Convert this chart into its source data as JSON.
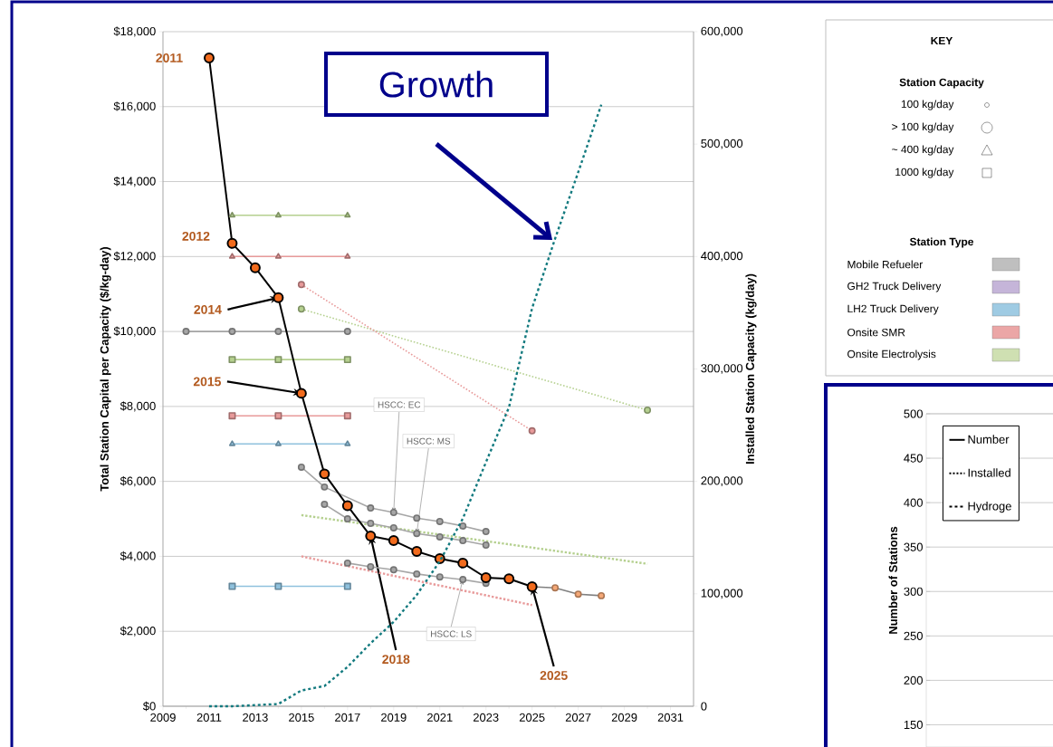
{
  "chart_data": [
    {
      "type": "line",
      "ylabel": "Total Station Capital per Capacity ($/kg-day)",
      "y2label": "Installed Station Capacity  (kg/day)",
      "xlim": [
        2009,
        2032
      ],
      "xticks": [
        2009,
        2011,
        2013,
        2015,
        2017,
        2019,
        2021,
        2023,
        2025,
        2027,
        2029,
        2031
      ],
      "ylim": [
        0,
        18000
      ],
      "yticks": [
        {
          "value": 0,
          "label": "$0"
        },
        {
          "value": 2000,
          "label": "$2,000"
        },
        {
          "value": 4000,
          "label": "$4,000"
        },
        {
          "value": 6000,
          "label": "$6,000"
        },
        {
          "value": 8000,
          "label": "$8,000"
        },
        {
          "value": 10000,
          "label": "$10,000"
        },
        {
          "value": 12000,
          "label": "$12,000"
        },
        {
          "value": 14000,
          "label": "$14,000"
        },
        {
          "value": 16000,
          "label": "$16,000"
        },
        {
          "value": 18000,
          "label": "$18,000"
        }
      ],
      "y2lim": [
        0,
        600000
      ],
      "y2ticks": [
        {
          "value": 0,
          "label": "0"
        },
        {
          "value": 100000,
          "label": "100,000"
        },
        {
          "value": 200000,
          "label": "200,000"
        },
        {
          "value": 300000,
          "label": "300,000"
        },
        {
          "value": 400000,
          "label": "400,000"
        },
        {
          "value": 500000,
          "label": "500,000"
        },
        {
          "value": 600000,
          "label": "600,000"
        }
      ],
      "grid": "y",
      "legend": false,
      "series": [
        {
          "color": "#a6a6a6",
          "x": [
            2010,
            2012,
            2014,
            2017
          ],
          "values": [
            10000,
            10000,
            10000,
            10000
          ],
          "marker": "circle",
          "line_style": "solid"
        },
        {
          "color": "#b5d08f",
          "x": [
            2012,
            2014,
            2017
          ],
          "values": [
            13100,
            13100,
            13100
          ],
          "marker": "triangle",
          "line_style": "solid"
        },
        {
          "color": "#e89a9a",
          "x": [
            2012,
            2014,
            2017
          ],
          "values": [
            12000,
            12000,
            12000
          ],
          "marker": "triangle",
          "line_style": "solid"
        },
        {
          "color": "#b5d08f",
          "x": [
            2012,
            2014,
            2017
          ],
          "values": [
            9250,
            9250,
            9250
          ],
          "marker": "square",
          "line_style": "solid"
        },
        {
          "color": "#e89a9a",
          "x": [
            2012,
            2014,
            2017
          ],
          "values": [
            7750,
            7750,
            7750
          ],
          "marker": "square",
          "line_style": "solid"
        },
        {
          "color": "#8fc1dd",
          "x": [
            2012,
            2014,
            2017
          ],
          "values": [
            7000,
            7000,
            7000
          ],
          "marker": "triangle",
          "line_style": "solid"
        },
        {
          "color": "#8fc1dd",
          "x": [
            2012,
            2014,
            2017
          ],
          "values": [
            3200,
            3200,
            3200
          ],
          "marker": "square",
          "line_style": "solid"
        },
        {
          "color": "#b5d08f",
          "x": [
            2015,
            2030
          ],
          "values": [
            10600,
            7900
          ],
          "marker": "circle",
          "line_style": "dotted"
        },
        {
          "color": "#e89a9a",
          "x": [
            2015,
            2025
          ],
          "values": [
            11250,
            7350
          ],
          "marker": "circle",
          "line_style": "dotted"
        },
        {
          "color": "#b5d08f",
          "x": [
            2015,
            2030
          ],
          "values": [
            5100,
            3800
          ],
          "marker": "none",
          "line_style": "dotted"
        },
        {
          "color": "#e89a9a",
          "x": [
            2015,
            2025
          ],
          "values": [
            4000,
            2700
          ],
          "marker": "none",
          "line_style": "dotted"
        },
        {
          "color": "#a6a6a6",
          "x": [
            2015,
            2016,
            2017,
            2018,
            2019,
            2020,
            2021,
            2022,
            2023
          ],
          "values": [
            6380,
            5850,
            null,
            5290,
            5170,
            5020,
            4930,
            4810,
            4660
          ],
          "marker": "circle",
          "line_style": "solid"
        },
        {
          "color": "#a6a6a6",
          "x": [
            2016,
            2017,
            2018,
            2019,
            2020,
            2021,
            2022,
            2023
          ],
          "values": [
            5390,
            5000,
            4880,
            4760,
            4610,
            4520,
            4420,
            4300
          ],
          "marker": "circle",
          "line_style": "solid"
        },
        {
          "color": "#a6a6a6",
          "x": [
            2017,
            2018,
            2019,
            2020,
            2021,
            2022,
            2023
          ],
          "values": [
            3820,
            3720,
            3640,
            3530,
            3450,
            3380,
            3280
          ],
          "marker": "circle",
          "line_style": "solid"
        },
        {
          "color": "#137a7f",
          "axis": "y2",
          "x": [
            2011,
            2012,
            2013,
            2014,
            2015,
            2016,
            2017,
            2018,
            2019,
            2020,
            2021,
            2022,
            2023,
            2024,
            2025,
            2026,
            2027,
            2028
          ],
          "values": [
            0,
            0,
            1000,
            2000,
            14000,
            18000,
            35000,
            56000,
            75000,
            99000,
            129000,
            167000,
            217000,
            266000,
            354000,
            416000,
            475000,
            535000
          ],
          "marker": "none",
          "line_style": "dashed"
        },
        {
          "color": "#f5a877",
          "x": [
            2025,
            2026,
            2027,
            2028
          ],
          "values": [
            3190,
            3160,
            2990,
            2950
          ],
          "marker": "circle",
          "line_style": "solid"
        },
        {
          "color": "#f26b1d",
          "x": [
            2011,
            2012,
            2013,
            2014,
            2015,
            2016,
            2017,
            2018,
            2019,
            2020,
            2021,
            2022,
            2023,
            2024,
            2025
          ],
          "values": [
            17300,
            12350,
            11700,
            10900,
            8350,
            6200,
            5350,
            4540,
            4420,
            4130,
            3940,
            3820,
            3430,
            3400,
            3190
          ],
          "marker": "circle",
          "line_style": "solid"
        }
      ],
      "annotations": [
        {
          "text": "2011",
          "x": 2011,
          "y": 17300
        },
        {
          "text": "2012",
          "x": 2012,
          "y": 12350
        },
        {
          "text": "2014",
          "x": 2014,
          "y": 10900
        },
        {
          "text": "2015",
          "x": 2015,
          "y": 8350
        },
        {
          "text": "2018",
          "x": 2018,
          "y": 4540
        },
        {
          "text": "2025",
          "x": 2025,
          "y": 3190
        },
        {
          "text": "HSCC: EC",
          "x": 2019,
          "y": 5170
        },
        {
          "text": "HSCC: MS",
          "x": 2020,
          "y": 4610
        },
        {
          "text": "HSCC: LS",
          "x": 2022,
          "y": 3380
        },
        "Growth"
      ]
    },
    {
      "type": "other",
      "title": "KEY",
      "annotations": [
        "Station Capacity",
        "100 kg/day",
        "> 100 kg/day",
        "~ 400 kg/day",
        "1000 kg/day",
        "Station Type",
        "Mobile Refueler",
        "GH2 Truck Delivery",
        "LH2 Truck Delivery",
        "Onsite SMR",
        "Onsite Electrolysis"
      ]
    },
    {
      "type": "line",
      "ylabel": "Number of Stations",
      "ylim": [
        125,
        500
      ],
      "yticks": [
        150,
        200,
        250,
        300,
        350,
        400,
        450,
        500
      ],
      "grid": "y",
      "legend": "top left",
      "tick_labels": "y",
      "categories": [
        null,
        null
      ],
      "series": [
        {
          "name": "Number",
          "color": "#000000",
          "values": [
            null,
            null
          ],
          "line_style": "solid"
        },
        {
          "name": "Installed",
          "color": "#000000",
          "values": [
            null,
            null
          ],
          "line_style": "dotted"
        },
        {
          "name": "Hydroge",
          "color": "#000000",
          "values": [
            null,
            null
          ],
          "line_style": "dashed"
        }
      ]
    }
  ]
}
